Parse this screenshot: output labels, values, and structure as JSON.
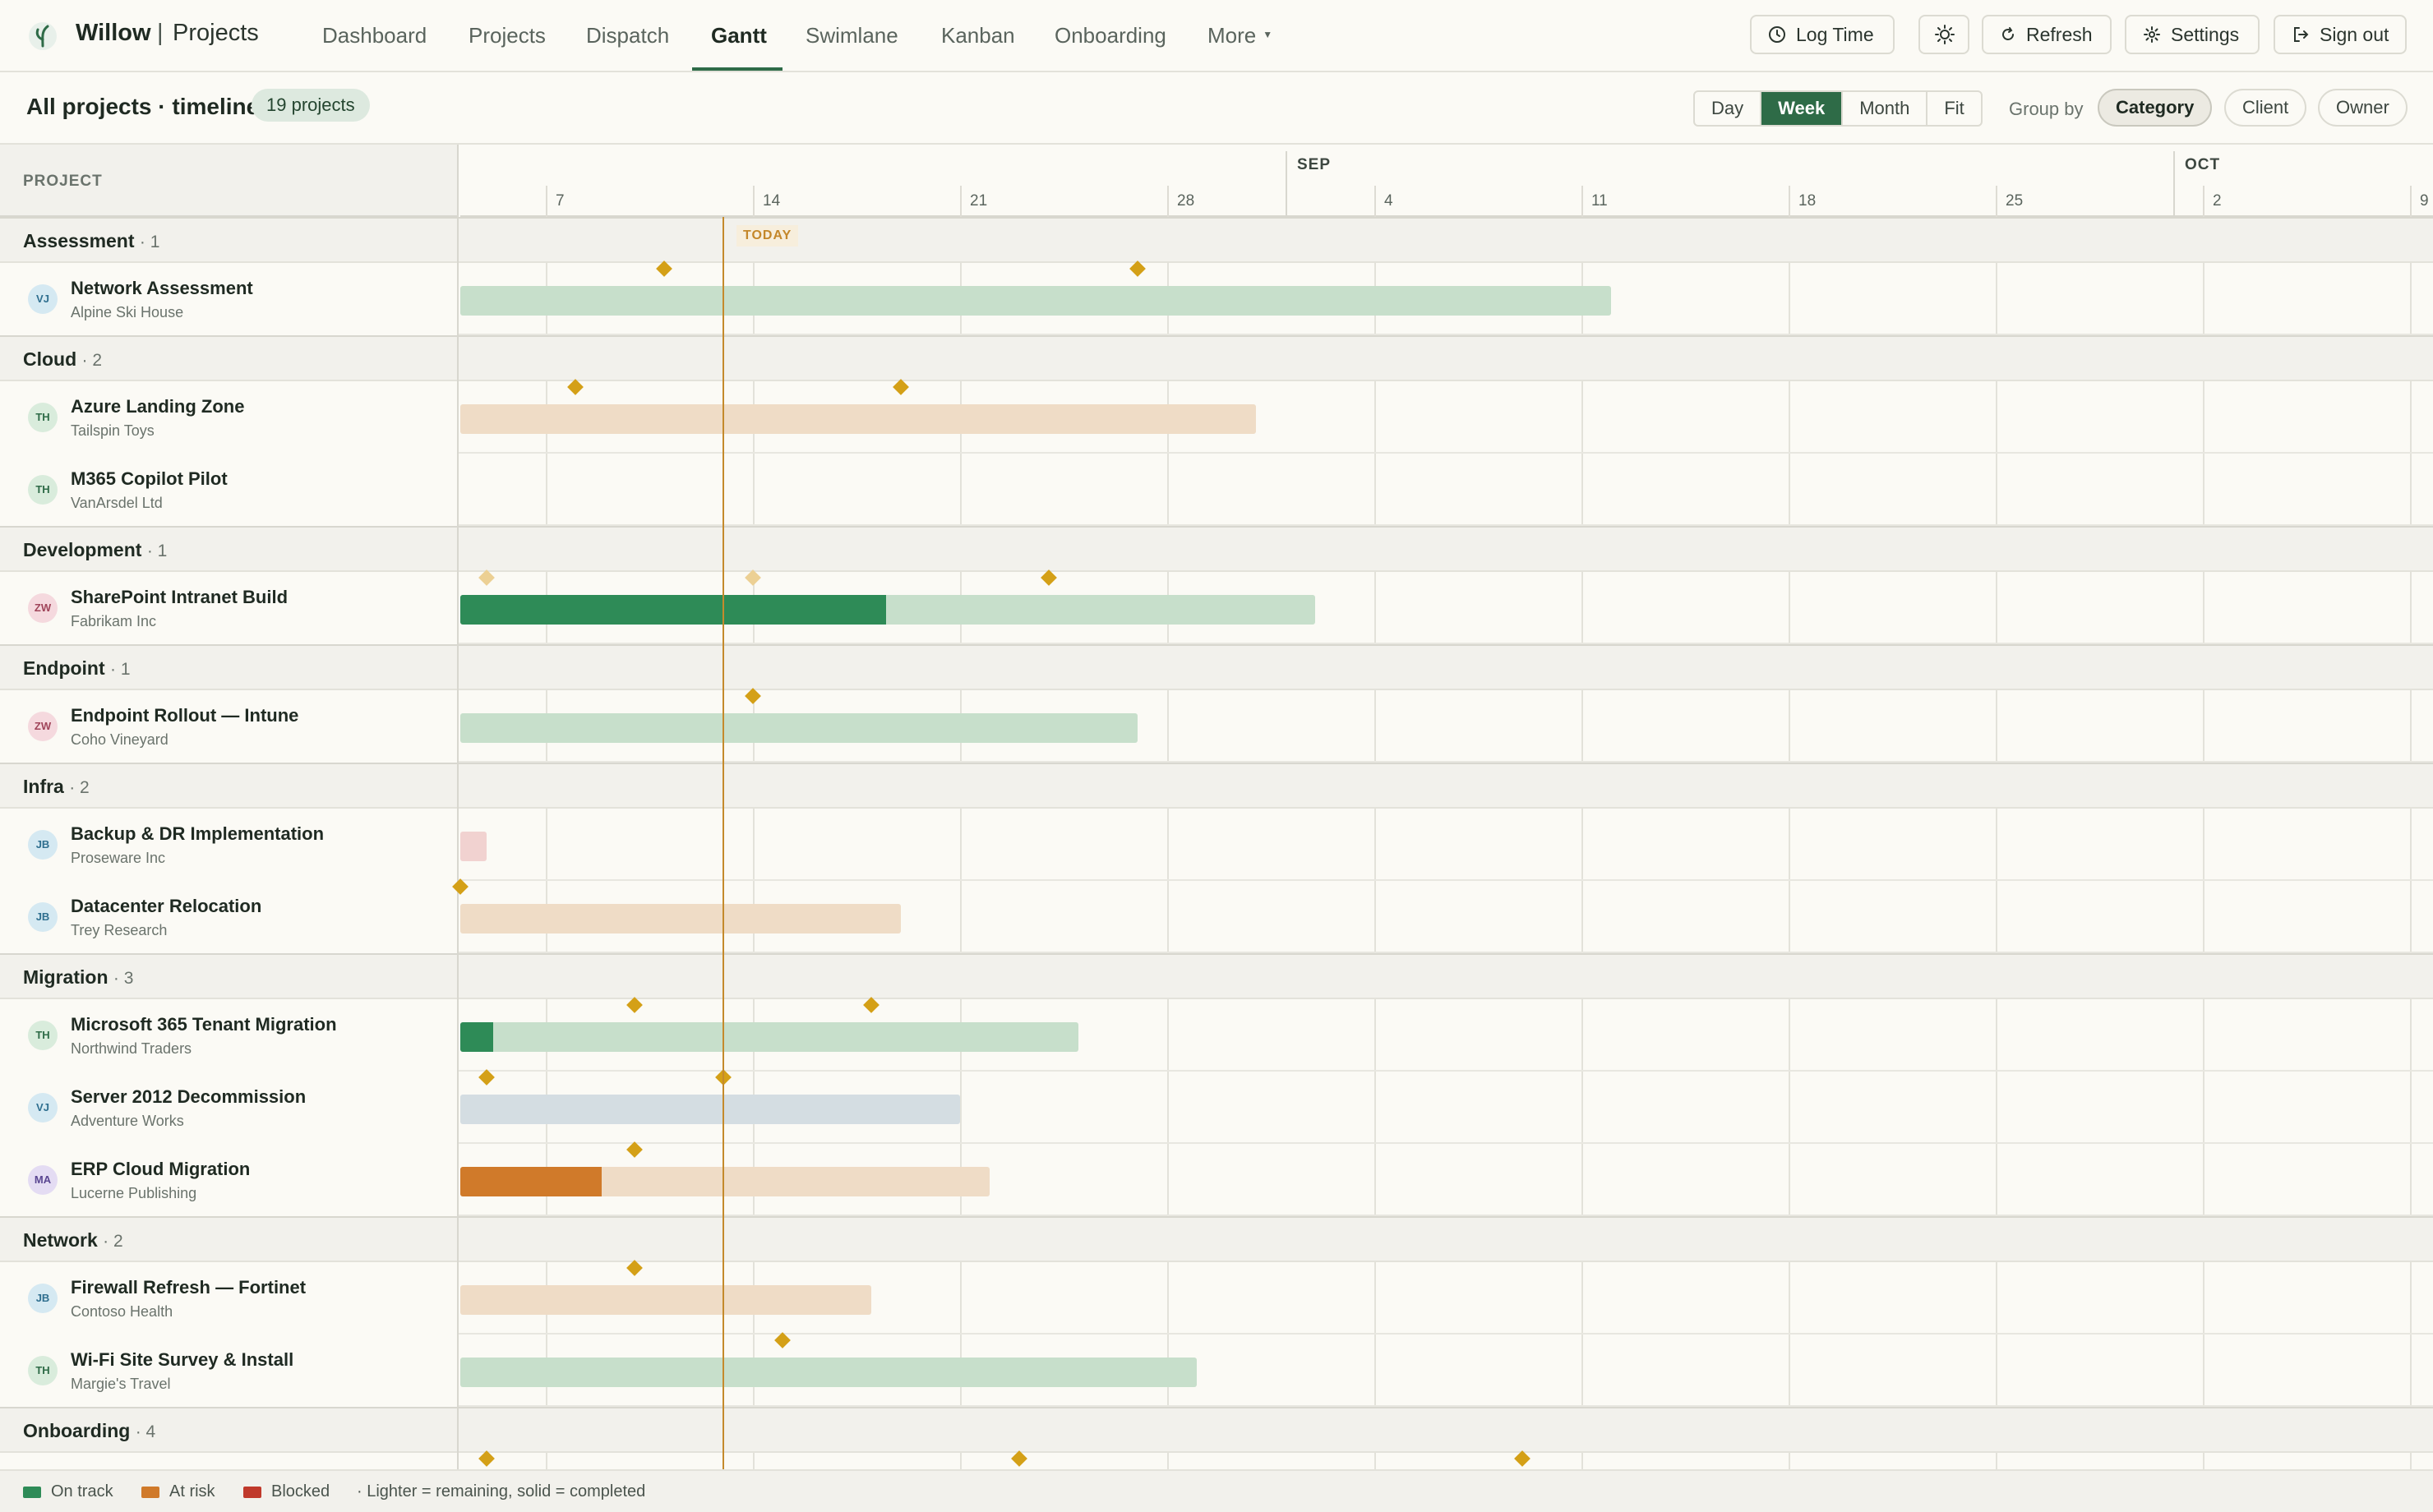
{
  "app": {
    "brand": "Willow",
    "separator": "|",
    "section": "Projects"
  },
  "nav": {
    "items": [
      "Dashboard",
      "Projects",
      "Dispatch",
      "Gantt",
      "Swimlane",
      "Kanban",
      "Onboarding",
      "More"
    ],
    "active": "Gantt"
  },
  "top_buttons": {
    "log_time": "Log Time",
    "refresh": "Refresh",
    "settings": "Settings",
    "sign_out": "Sign out"
  },
  "toolbar": {
    "title": "All projects · timeline",
    "count": "19 projects",
    "zoom_options": [
      "Day",
      "Week",
      "Month",
      "Fit"
    ],
    "zoom_active": "Week",
    "group_by_label": "Group by",
    "group_by_options": [
      "Category",
      "Client",
      "Owner"
    ],
    "group_by_active": "Category"
  },
  "timeline": {
    "project_col_header": "PROJECT",
    "months": [
      "SEP",
      "OCT"
    ],
    "weeks": [
      "7",
      "14",
      "21",
      "28",
      "4",
      "11",
      "18",
      "25",
      "2",
      "9"
    ],
    "today_label": "TODAY"
  },
  "groups": [
    {
      "name": "Assessment",
      "count": "· 1",
      "projects": [
        {
          "name": "Network Assessment",
          "client": "Alpine Ski House",
          "owner": "VJ"
        }
      ]
    },
    {
      "name": "Cloud",
      "count": "· 2",
      "projects": [
        {
          "name": "Azure Landing Zone",
          "client": "Tailspin Toys",
          "owner": "TH"
        },
        {
          "name": "M365 Copilot Pilot",
          "client": "VanArsdel Ltd",
          "owner": "TH"
        }
      ]
    },
    {
      "name": "Development",
      "count": "· 1",
      "projects": [
        {
          "name": "SharePoint Intranet Build",
          "client": "Fabrikam Inc",
          "owner": "ZW"
        }
      ]
    },
    {
      "name": "Endpoint",
      "count": "· 1",
      "projects": [
        {
          "name": "Endpoint Rollout — Intune",
          "client": "Coho Vineyard",
          "owner": "ZW"
        }
      ]
    },
    {
      "name": "Infra",
      "count": "· 2",
      "projects": [
        {
          "name": "Backup & DR Implementation",
          "client": "Proseware Inc",
          "owner": "JB"
        },
        {
          "name": "Datacenter Relocation",
          "client": "Trey Research",
          "owner": "JB"
        }
      ]
    },
    {
      "name": "Migration",
      "count": "· 3",
      "projects": [
        {
          "name": "Microsoft 365 Tenant Migration",
          "client": "Northwind Traders",
          "owner": "TH"
        },
        {
          "name": "Server 2012 Decommission",
          "client": "Adventure Works",
          "owner": "VJ"
        },
        {
          "name": "ERP Cloud Migration",
          "client": "Lucerne Publishing",
          "owner": "MA"
        }
      ]
    },
    {
      "name": "Network",
      "count": "· 2",
      "projects": [
        {
          "name": "Firewall Refresh — Fortinet",
          "client": "Contoso Health",
          "owner": "JB"
        },
        {
          "name": "Wi-Fi Site Survey & Install",
          "client": "Margie's Travel",
          "owner": "TH"
        }
      ]
    },
    {
      "name": "Onboarding",
      "count": "· 4",
      "projects": []
    }
  ],
  "legend": {
    "on_track": "On track",
    "at_risk": "At risk",
    "blocked": "Blocked",
    "note": "· Lighter = remaining, solid = completed"
  },
  "colors": {
    "accent": "#2e6b47",
    "on_track": "#2e8b57",
    "at_risk": "#d07a2a",
    "blocked": "#c0392b",
    "milestone": "#d4a017",
    "today": "#c48a2c"
  }
}
